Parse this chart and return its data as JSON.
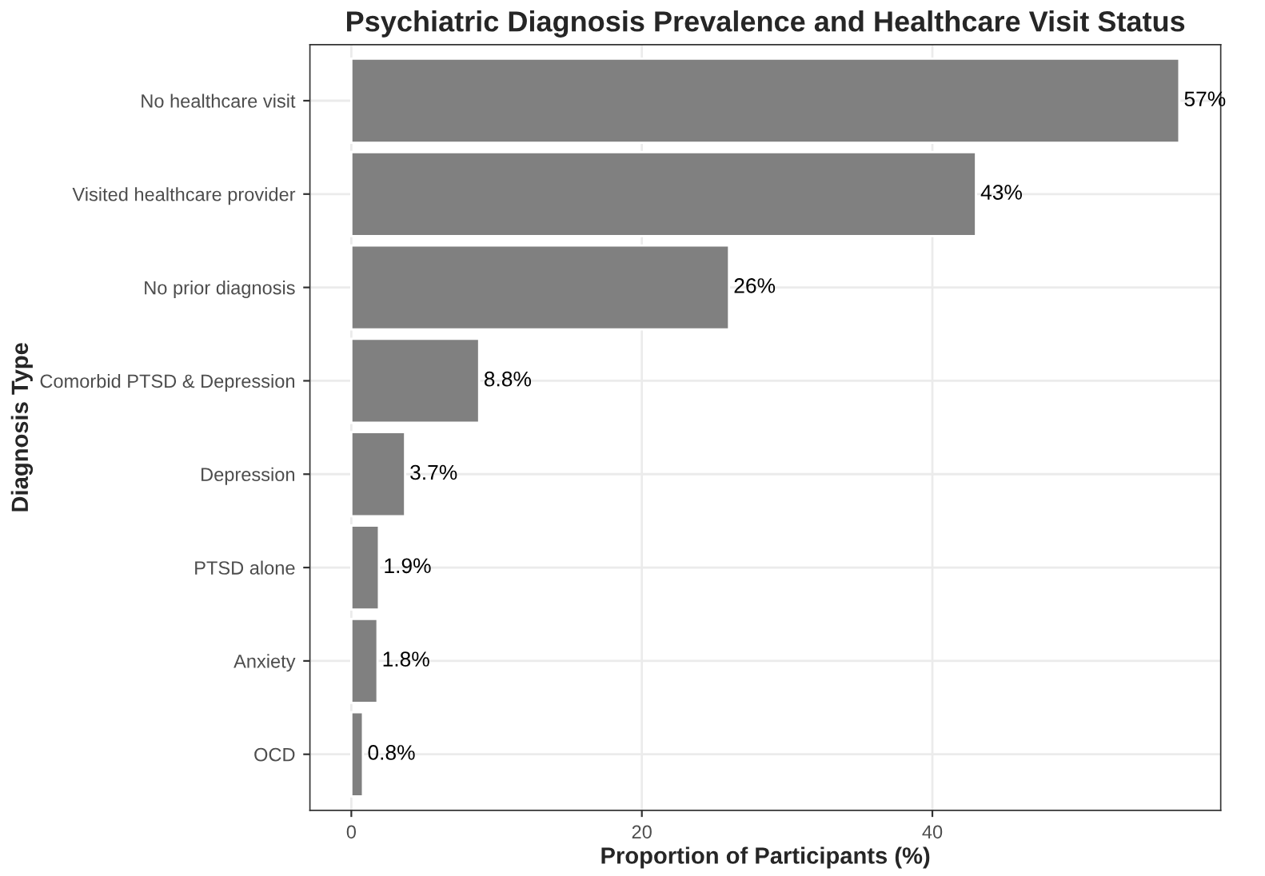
{
  "chart_data": {
    "type": "bar",
    "orientation": "horizontal",
    "title": "Psychiatric Diagnosis Prevalence and Healthcare Visit Status",
    "xlabel": "Proportion of Participants (%)",
    "ylabel": "Diagnosis Type",
    "categories": [
      "No healthcare visit",
      "Visited healthcare provider",
      "No prior diagnosis",
      "Comorbid PTSD & Depression",
      "Depression",
      "PTSD alone",
      "Anxiety",
      "OCD"
    ],
    "values": [
      57,
      43,
      26,
      8.8,
      3.7,
      1.9,
      1.8,
      0.8
    ],
    "value_labels": [
      "57%",
      "43%",
      "26%",
      "8.8%",
      "3.7%",
      "1.9%",
      "1.8%",
      "0.8%"
    ],
    "color": "#808080",
    "xlim": [
      -2.85,
      59.85
    ],
    "xticks": [
      0,
      20,
      40
    ],
    "grid": true,
    "legend": false
  }
}
